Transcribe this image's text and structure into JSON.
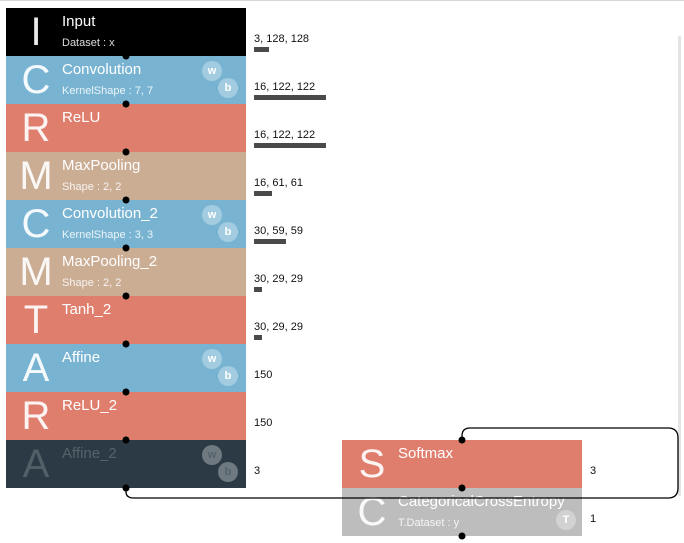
{
  "layers": [
    {
      "id": "input",
      "letter": "I",
      "name": "Input",
      "param": "Dataset : x",
      "color": "#000000",
      "text_color": "#ffffff",
      "badges": [],
      "output": "3, 128, 128",
      "size": 49152
    },
    {
      "id": "convolution",
      "letter": "C",
      "name": "Convolution",
      "param": "KernelShape : 7, 7",
      "color": "#78b4d2",
      "text_color": "#ffffff",
      "badges": [
        "w",
        "b"
      ],
      "output": "16, 122, 122",
      "size": 238144
    },
    {
      "id": "relu",
      "letter": "R",
      "name": "ReLU",
      "param": "",
      "color": "#e07e6e",
      "text_color": "#ffffff",
      "badges": [],
      "output": "16, 122, 122",
      "size": 238144
    },
    {
      "id": "maxpooling",
      "letter": "M",
      "name": "MaxPooling",
      "param": "Shape : 2, 2",
      "color": "#cbad94",
      "text_color": "#ffffff",
      "badges": [],
      "output": "16, 61, 61",
      "size": 59536
    },
    {
      "id": "convolution-2",
      "letter": "C",
      "name": "Convolution_2",
      "param": "KernelShape : 3, 3",
      "color": "#78b4d2",
      "text_color": "#ffffff",
      "badges": [
        "w",
        "b"
      ],
      "output": "30, 59, 59",
      "size": 104430
    },
    {
      "id": "maxpooling-2",
      "letter": "M",
      "name": "MaxPooling_2",
      "param": "Shape : 2, 2",
      "color": "#cbad94",
      "text_color": "#ffffff",
      "badges": [],
      "output": "30, 29, 29",
      "size": 25230
    },
    {
      "id": "tanh-2",
      "letter": "T",
      "name": "Tanh_2",
      "param": "",
      "color": "#e07e6e",
      "text_color": "#ffffff",
      "badges": [],
      "output": "30, 29, 29",
      "size": 25230
    },
    {
      "id": "affine",
      "letter": "A",
      "name": "Affine",
      "param": "",
      "color": "#78b4d2",
      "text_color": "#ffffff",
      "badges": [
        "w",
        "b"
      ],
      "output": "150",
      "size": 150
    },
    {
      "id": "relu-2",
      "letter": "R",
      "name": "ReLU_2",
      "param": "",
      "color": "#e07e6e",
      "text_color": "#ffffff",
      "badges": [],
      "output": "150",
      "size": 150
    },
    {
      "id": "affine-2",
      "letter": "A",
      "name": "Affine_2",
      "param": "",
      "color": "#2b3a44",
      "text_color": "#56636b",
      "badges": [
        "w",
        "b"
      ],
      "output": "3",
      "size": 3
    },
    {
      "id": "softmax",
      "letter": "S",
      "name": "Softmax",
      "param": "",
      "color": "#e07e6e",
      "text_color": "#ffffff",
      "badges": [],
      "output": "3",
      "size": 3
    },
    {
      "id": "categoricalcrossentropy",
      "letter": "C",
      "name": "CategoricalCrossEntropy",
      "param": "T.Dataset : y",
      "color": "#bdbdbd",
      "text_color": "#ffffff",
      "badges": [
        "T"
      ],
      "output": "1",
      "size": 1
    }
  ],
  "badge_labels": {
    "w": "w",
    "b": "b",
    "T": "T"
  }
}
